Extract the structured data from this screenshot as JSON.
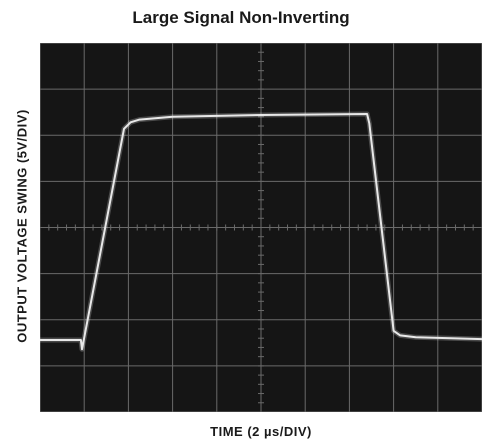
{
  "chart_data": {
    "type": "line",
    "title": "Large Signal Non-Inverting",
    "xlabel": "TIME (2 µs/DIV)",
    "ylabel": "OUTPUT VOLTAGE SWING (5V/DIV)",
    "grid": true,
    "x_divisions": 10,
    "y_divisions": 8,
    "x_per_div": "2 µs",
    "y_per_div": "5V",
    "x_unit": "µs",
    "y_unit": "V",
    "xlim": [
      0,
      20
    ],
    "ylim": [
      -20,
      20
    ],
    "colors": {
      "screen": "#151515",
      "grid": "#6a6a6a",
      "trace": "#e8e8e8"
    },
    "series": [
      {
        "x": [
          0,
          1.85,
          1.9,
          3.8,
          4.1,
          4.5,
          6.0,
          10.0,
          14.8,
          14.9,
          16.0,
          16.3,
          17.0,
          20.0
        ],
        "y": [
          -12.2,
          -12.2,
          -13.2,
          10.7,
          11.4,
          11.7,
          12.0,
          12.2,
          12.3,
          11.3,
          -11.2,
          -11.7,
          -11.9,
          -12.1
        ]
      }
    ]
  }
}
